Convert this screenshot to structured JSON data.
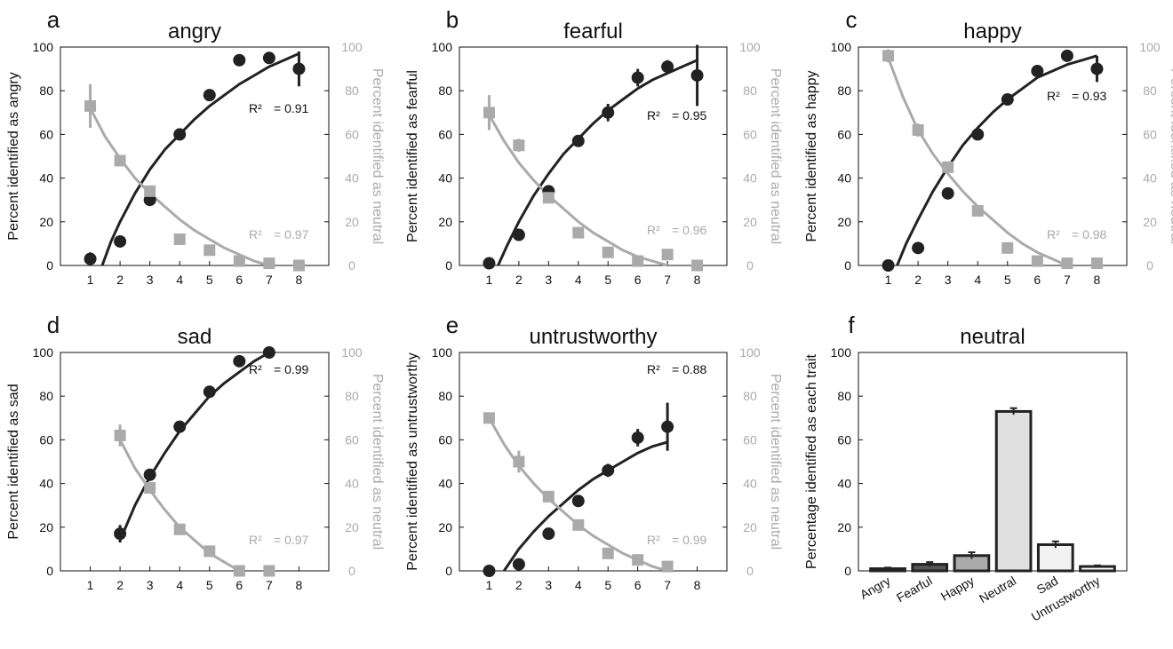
{
  "colors": {
    "dark": "#222222",
    "gray": "#aaaaaa"
  },
  "chart_data": [
    {
      "type": "scatter",
      "letter": "a",
      "title": "angry",
      "ylabel": "Percent identified as angry",
      "ylabel_right": "Percent identified as neutral",
      "x_ticks": [
        "1",
        "2",
        "3",
        "4",
        "5",
        "6",
        "7",
        "8"
      ],
      "y_ticks": [
        "0",
        "20",
        "40",
        "60",
        "80",
        "100"
      ],
      "y_ticks_right": [
        "0",
        "20",
        "40",
        "60",
        "80",
        "100"
      ],
      "xlim": [
        0,
        9
      ],
      "ylim": [
        0,
        100
      ],
      "series": [
        {
          "marker": "circle",
          "color": "#222222",
          "x": [
            1,
            2,
            3,
            4,
            5,
            6,
            7,
            8
          ],
          "y": [
            3,
            11,
            30,
            60,
            78,
            94,
            95,
            90
          ],
          "err": [
            3,
            1,
            1,
            1,
            2,
            1,
            2,
            8
          ]
        },
        {
          "marker": "square",
          "color": "#aaaaaa",
          "x": [
            1,
            2,
            3,
            4,
            5,
            6,
            7,
            8
          ],
          "y": [
            73,
            48,
            34,
            12,
            7,
            2,
            1,
            0
          ],
          "err": [
            10,
            2,
            2,
            1,
            1,
            1,
            1,
            0
          ]
        }
      ],
      "fits": [
        {
          "color": "#222222",
          "x": [
            1.4,
            1.7,
            2,
            2.5,
            3,
            3.5,
            4,
            4.5,
            5,
            5.5,
            6,
            6.5,
            7,
            7.5,
            8
          ],
          "y": [
            0,
            11,
            20,
            33,
            44,
            53,
            60,
            67,
            73,
            78,
            83,
            87,
            91,
            94,
            97
          ]
        },
        {
          "color": "#aaaaaa",
          "x": [
            1,
            1.5,
            2,
            2.5,
            3,
            3.5,
            4,
            4.5,
            5,
            5.5,
            6,
            6.5,
            7
          ],
          "y": [
            72,
            59,
            49,
            40,
            33,
            27,
            21,
            16,
            12,
            8,
            5,
            2,
            0
          ]
        }
      ],
      "r2": [
        {
          "label": "R²",
          "value": "= 0.91",
          "color": "#222222"
        },
        {
          "label": "R²",
          "value": "= 0.97",
          "color": "#aaaaaa"
        }
      ]
    },
    {
      "type": "scatter",
      "letter": "b",
      "title": "fearful",
      "ylabel": "Percent identified as fearful",
      "ylabel_right": "Percent identified as neutral",
      "x_ticks": [
        "1",
        "2",
        "3",
        "4",
        "5",
        "6",
        "7",
        "8"
      ],
      "y_ticks": [
        "0",
        "20",
        "40",
        "60",
        "80",
        "100"
      ],
      "y_ticks_right": [
        "0",
        "20",
        "40",
        "60",
        "80",
        "100"
      ],
      "xlim": [
        0,
        9
      ],
      "ylim": [
        0,
        100
      ],
      "series": [
        {
          "marker": "circle",
          "color": "#222222",
          "x": [
            1,
            2,
            3,
            4,
            5,
            6,
            7,
            8
          ],
          "y": [
            1,
            14,
            34,
            57,
            70,
            86,
            91,
            87
          ],
          "err": [
            1,
            1,
            1,
            1,
            4,
            4,
            3,
            14
          ]
        },
        {
          "marker": "square",
          "color": "#aaaaaa",
          "x": [
            1,
            2,
            3,
            4,
            5,
            6,
            7,
            8
          ],
          "y": [
            70,
            55,
            31,
            15,
            6,
            2,
            5,
            0
          ],
          "err": [
            8,
            3,
            2,
            1,
            1,
            1,
            1,
            0
          ]
        }
      ],
      "fits": [
        {
          "color": "#222222",
          "x": [
            1.3,
            1.6,
            2,
            2.5,
            3,
            3.5,
            4,
            4.5,
            5,
            5.5,
            6,
            6.5,
            7,
            7.5,
            8
          ],
          "y": [
            0,
            9,
            20,
            32,
            42,
            51,
            58,
            65,
            71,
            76,
            81,
            85,
            88,
            91,
            94
          ]
        },
        {
          "color": "#aaaaaa",
          "x": [
            1,
            1.5,
            2,
            2.5,
            3,
            3.5,
            4,
            4.5,
            5,
            5.5,
            6,
            6.5,
            7
          ],
          "y": [
            69,
            57,
            47,
            39,
            32,
            26,
            20,
            15,
            11,
            7,
            4,
            2,
            0
          ]
        }
      ],
      "r2": [
        {
          "label": "R²",
          "value": "= 0.95",
          "color": "#222222"
        },
        {
          "label": "R²",
          "value": "= 0.96",
          "color": "#aaaaaa"
        }
      ]
    },
    {
      "type": "scatter",
      "letter": "c",
      "title": "happy",
      "ylabel": "Percent identified as happy",
      "ylabel_right": "Percent identified as neutral",
      "x_ticks": [
        "1",
        "2",
        "3",
        "4",
        "5",
        "6",
        "7",
        "8"
      ],
      "y_ticks": [
        "0",
        "20",
        "40",
        "60",
        "80",
        "100"
      ],
      "y_ticks_right": [
        "0",
        "20",
        "40",
        "60",
        "80",
        "100"
      ],
      "xlim": [
        0,
        9
      ],
      "ylim": [
        0,
        100
      ],
      "series": [
        {
          "marker": "circle",
          "color": "#222222",
          "x": [
            1,
            2,
            3,
            4,
            5,
            6,
            7,
            8
          ],
          "y": [
            0,
            8,
            33,
            60,
            76,
            89,
            96,
            90
          ],
          "err": [
            0,
            1,
            1,
            1,
            2,
            1,
            1,
            6
          ]
        },
        {
          "marker": "square",
          "color": "#aaaaaa",
          "x": [
            1,
            2,
            3,
            4,
            5,
            6,
            7,
            8
          ],
          "y": [
            96,
            62,
            45,
            25,
            8,
            2,
            1,
            1
          ],
          "err": [
            3,
            3,
            1,
            1,
            1,
            1,
            1,
            0
          ]
        }
      ],
      "fits": [
        {
          "color": "#222222",
          "x": [
            1.3,
            1.6,
            2,
            2.5,
            3,
            3.5,
            4,
            4.5,
            5,
            5.5,
            6,
            6.5,
            7,
            7.5,
            8
          ],
          "y": [
            0,
            10,
            21,
            34,
            45,
            55,
            63,
            70,
            76,
            81,
            86,
            89,
            92,
            94,
            96
          ]
        },
        {
          "color": "#aaaaaa",
          "x": [
            1,
            1.5,
            2,
            2.5,
            3,
            3.5,
            4,
            4.5,
            5,
            5.5,
            6,
            6.5,
            7
          ],
          "y": [
            95,
            77,
            62,
            51,
            42,
            34,
            27,
            21,
            15,
            10,
            6,
            3,
            0
          ]
        }
      ],
      "r2": [
        {
          "label": "R²",
          "value": "= 0.93",
          "color": "#222222"
        },
        {
          "label": "R²",
          "value": "= 0.98",
          "color": "#aaaaaa"
        }
      ]
    },
    {
      "type": "scatter",
      "letter": "d",
      "title": "sad",
      "ylabel": "Percent identified as sad",
      "ylabel_right": "Percent identified as neutral",
      "x_ticks": [
        "1",
        "2",
        "3",
        "4",
        "5",
        "6",
        "7",
        "8"
      ],
      "y_ticks": [
        "0",
        "20",
        "40",
        "60",
        "80",
        "100"
      ],
      "y_ticks_right": [
        "0",
        "20",
        "40",
        "60",
        "80",
        "100"
      ],
      "xlim": [
        0,
        9
      ],
      "ylim": [
        0,
        100
      ],
      "series": [
        {
          "marker": "circle",
          "color": "#222222",
          "x": [
            2,
            3,
            4,
            5,
            6,
            7
          ],
          "y": [
            17,
            44,
            66,
            82,
            96,
            100
          ],
          "err": [
            4,
            1,
            1,
            1,
            1,
            0
          ]
        },
        {
          "marker": "square",
          "color": "#aaaaaa",
          "x": [
            2,
            3,
            4,
            5,
            6,
            7
          ],
          "y": [
            62,
            38,
            19,
            9,
            0,
            0
          ],
          "err": [
            5,
            1,
            1,
            1,
            0,
            0
          ]
        }
      ],
      "fits": [
        {
          "color": "#222222",
          "x": [
            2,
            2.5,
            3,
            3.5,
            4,
            4.5,
            5,
            5.5,
            6,
            6.5,
            7
          ],
          "y": [
            14,
            30,
            43,
            54,
            64,
            72,
            80,
            86,
            91,
            96,
            100
          ]
        },
        {
          "color": "#aaaaaa",
          "x": [
            2,
            2.5,
            3,
            3.5,
            4,
            4.5,
            5,
            5.5,
            6
          ],
          "y": [
            60,
            47,
            37,
            28,
            20,
            14,
            8,
            4,
            0
          ]
        }
      ],
      "r2": [
        {
          "label": "R²",
          "value": "= 0.99",
          "color": "#222222"
        },
        {
          "label": "R²",
          "value": "= 0.97",
          "color": "#aaaaaa"
        }
      ]
    },
    {
      "type": "scatter",
      "letter": "e",
      "title": "untrustworthy",
      "ylabel": "Percent identified as untrustworthy",
      "ylabel_right": "Percent identified as neutral",
      "x_ticks": [
        "1",
        "2",
        "3",
        "4",
        "5",
        "6",
        "7",
        "8"
      ],
      "y_ticks": [
        "0",
        "20",
        "40",
        "60",
        "80",
        "100"
      ],
      "y_ticks_right": [
        "0",
        "20",
        "40",
        "60",
        "80",
        "100"
      ],
      "xlim": [
        0,
        9
      ],
      "ylim": [
        0,
        100
      ],
      "series": [
        {
          "marker": "circle",
          "color": "#222222",
          "x": [
            1,
            2,
            3,
            4,
            5,
            6,
            7
          ],
          "y": [
            0,
            3,
            17,
            32,
            46,
            61,
            66
          ],
          "err": [
            0,
            1,
            1,
            1,
            3,
            4,
            11
          ]
        },
        {
          "marker": "square",
          "color": "#aaaaaa",
          "x": [
            1,
            2,
            3,
            4,
            5,
            6,
            7
          ],
          "y": [
            70,
            50,
            34,
            21,
            8,
            5,
            2
          ],
          "err": [
            1,
            5,
            2,
            1,
            1,
            1,
            1
          ]
        }
      ],
      "fits": [
        {
          "color": "#222222",
          "x": [
            1.5,
            2,
            2.5,
            3,
            3.5,
            4,
            4.5,
            5,
            5.5,
            6,
            6.5,
            7
          ],
          "y": [
            0,
            10,
            18,
            25,
            31,
            37,
            42,
            46,
            50,
            54,
            57,
            59
          ]
        },
        {
          "color": "#aaaaaa",
          "x": [
            1,
            1.5,
            2,
            2.5,
            3,
            3.5,
            4,
            4.5,
            5,
            5.5,
            6,
            6.5,
            7
          ],
          "y": [
            70,
            58,
            48,
            40,
            33,
            27,
            21,
            16,
            12,
            8,
            5,
            2,
            0
          ]
        }
      ],
      "r2": [
        {
          "label": "R²",
          "value": "= 0.88",
          "color": "#222222"
        },
        {
          "label": "R²",
          "value": "= 0.99",
          "color": "#aaaaaa"
        }
      ]
    },
    {
      "type": "bar",
      "letter": "f",
      "title": "neutral",
      "ylabel": "Percentage identified as each trait",
      "y_ticks": [
        "0",
        "20",
        "40",
        "60",
        "80",
        "100"
      ],
      "ylim": [
        0,
        100
      ],
      "categories": [
        "Angry",
        "Fearful",
        "Happy",
        "Neutral",
        "Sad",
        "Untrustworthy"
      ],
      "values": [
        1,
        3,
        7,
        73,
        12,
        2
      ],
      "err": [
        0.5,
        1,
        1.5,
        1.5,
        1.5,
        0.5
      ],
      "bar_colors": [
        "#333333",
        "#555555",
        "#aaaaaa",
        "#e0e0e0",
        "#f2f2f2",
        "#ffffff"
      ]
    }
  ]
}
